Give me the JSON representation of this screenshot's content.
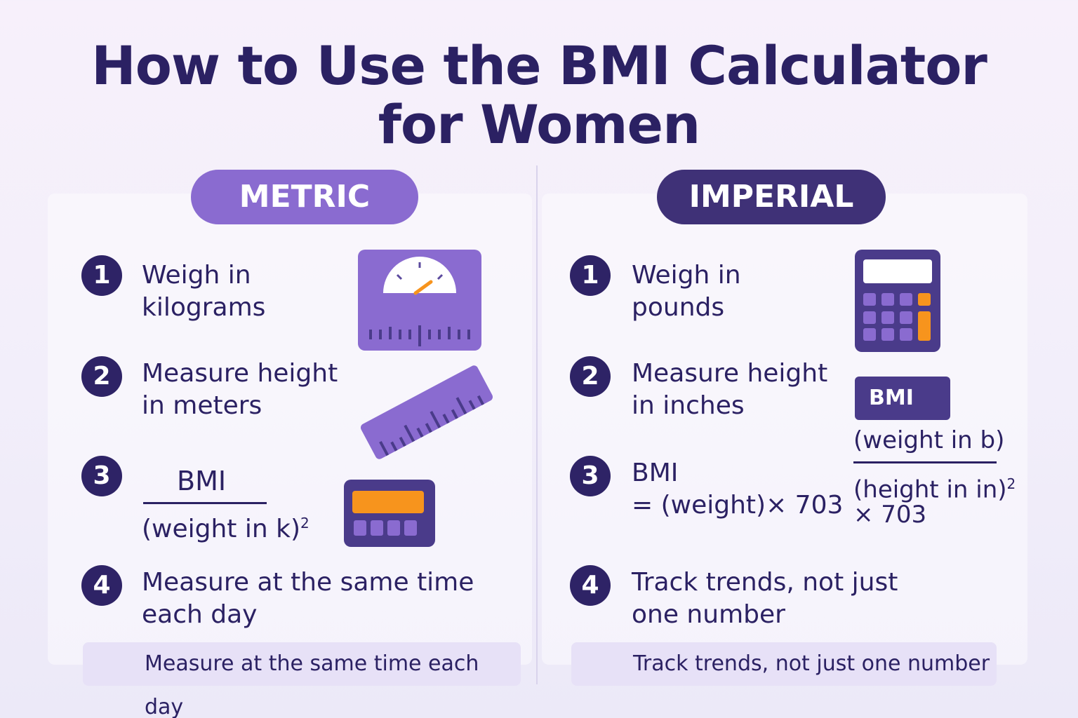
{
  "title": {
    "line1": "How to Use the BMI Calculator",
    "line2": "for Women"
  },
  "metric": {
    "label": "METRIC",
    "steps": [
      {
        "num": "1",
        "line1": "Weigh in",
        "line2": "kilograms"
      },
      {
        "num": "2",
        "line1": "Measure height",
        "line2": "in meters"
      },
      {
        "num": "3",
        "formula_top": "BMI",
        "formula_bottom": "(weight in k)",
        "exponent": "2"
      },
      {
        "num": "4",
        "line1": "Measure at the same time",
        "line2": "each day"
      }
    ],
    "note": "Measure at the same time each day"
  },
  "imperial": {
    "label": "IMPERIAL",
    "steps": [
      {
        "num": "1",
        "line1": "Weigh in",
        "line2": "pounds"
      },
      {
        "num": "2",
        "line1": "Measure height",
        "line2": "in inches"
      },
      {
        "num": "3",
        "line1": "BMI",
        "line2": "= (weight)× 703"
      },
      {
        "num": "4",
        "line1": "Track trends, not just",
        "line2": "one number"
      }
    ],
    "bmi_tag": "BMI",
    "formula_top": "(weight in b)",
    "formula_bottom": "(height in in)",
    "formula_exponent": "2",
    "formula_multiplier": "× 703",
    "note": "Track trends, not just one number"
  },
  "colors": {
    "navy": "#2e2366",
    "purple": "#8a6bd0",
    "dark_purple": "#3f3177",
    "accent_orange": "#f7941d"
  },
  "icons": [
    "scale-icon",
    "ruler-icon",
    "calculator-icon",
    "calculator-icon"
  ]
}
